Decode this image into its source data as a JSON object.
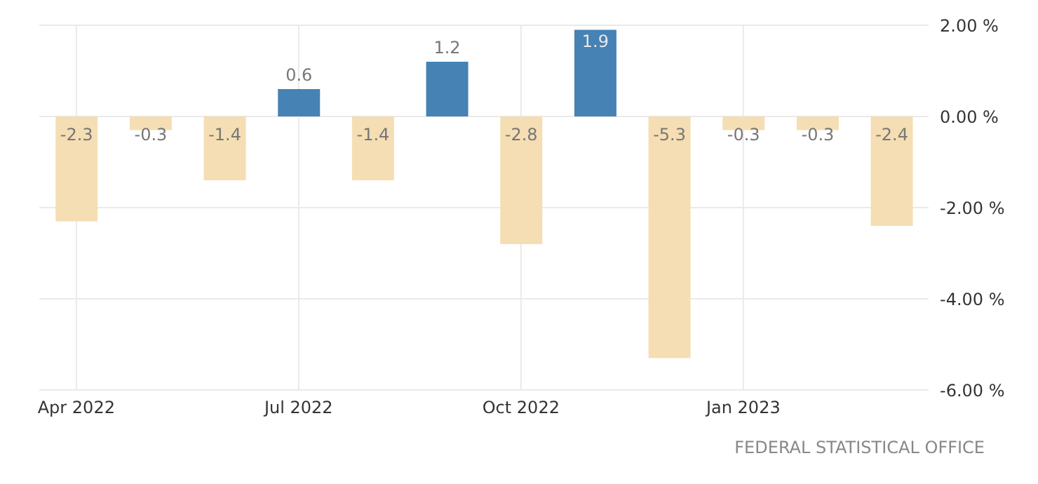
{
  "chart_data": {
    "type": "bar",
    "categories": [
      "Apr 2022",
      null,
      null,
      "Jul 2022",
      null,
      null,
      "Oct 2022",
      null,
      null,
      "Jan 2023",
      null,
      null
    ],
    "values": [
      -2.3,
      -0.3,
      -1.4,
      0.6,
      -1.4,
      1.2,
      -2.8,
      1.9,
      -5.3,
      -0.3,
      -0.3,
      -2.4
    ],
    "colors": [
      "#f5deb3",
      "#f5deb3",
      "#f5deb3",
      "#4682b4",
      "#f5deb3",
      "#4682b4",
      "#f5deb3",
      "#4682b4",
      "#f5deb3",
      "#f5deb3",
      "#f5deb3",
      "#f5deb3"
    ],
    "ylim": [
      -6,
      2
    ],
    "yticks": [
      {
        "value": -6,
        "label": "-6.00 %"
      },
      {
        "value": -4,
        "label": "-4.00 %"
      },
      {
        "value": -2,
        "label": "-2.00 %"
      },
      {
        "value": 0,
        "label": "0.00 %"
      },
      {
        "value": 2,
        "label": "2.00 %"
      }
    ],
    "grid": true,
    "data_labels": true,
    "annotations": [
      "FEDERAL STATISTICAL OFFICE"
    ]
  }
}
